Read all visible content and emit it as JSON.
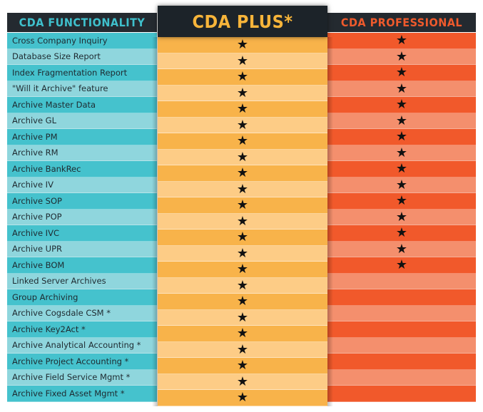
{
  "headers": {
    "functionality": "CDA FUNCTIONALITY",
    "plus": "CDA PLUS*",
    "professional": "CDA PROFESSIONAL"
  },
  "colors": {
    "header_bg": "#242a30",
    "func_dark": "#45c2cd",
    "func_light": "#8fd6dd",
    "plus_dark": "#f8b34a",
    "plus_light": "#fdcc86",
    "pro_dark": "#f1592b",
    "pro_light": "#f48f6d"
  },
  "star_glyph": "★",
  "rows": [
    {
      "name": "Cross Company Inquiry",
      "plus": true,
      "pro": true
    },
    {
      "name": "Database Size Report",
      "plus": true,
      "pro": true
    },
    {
      "name": "Index Fragmentation Report",
      "plus": true,
      "pro": true
    },
    {
      "name": "\"Will it Archive\" feature",
      "plus": true,
      "pro": true
    },
    {
      "name": "Archive Master Data",
      "plus": true,
      "pro": true
    },
    {
      "name": "Archive GL",
      "plus": true,
      "pro": true
    },
    {
      "name": "Archive PM",
      "plus": true,
      "pro": true
    },
    {
      "name": "Archive RM",
      "plus": true,
      "pro": true
    },
    {
      "name": "Archive BankRec",
      "plus": true,
      "pro": true
    },
    {
      "name": "Archive IV",
      "plus": true,
      "pro": true
    },
    {
      "name": "Archive SOP",
      "plus": true,
      "pro": true
    },
    {
      "name": "Archive POP",
      "plus": true,
      "pro": true
    },
    {
      "name": "Archive IVC",
      "plus": true,
      "pro": true
    },
    {
      "name": "Archive UPR",
      "plus": true,
      "pro": true
    },
    {
      "name": "Archive BOM",
      "plus": true,
      "pro": true
    },
    {
      "name": "Linked Server Archives",
      "plus": true,
      "pro": false
    },
    {
      "name": "Group Archiving",
      "plus": true,
      "pro": false
    },
    {
      "name": "Archive Cogsdale CSM *",
      "plus": true,
      "pro": false
    },
    {
      "name": "Archive Key2Act *",
      "plus": true,
      "pro": false
    },
    {
      "name": "Archive Analytical Accounting *",
      "plus": true,
      "pro": false
    },
    {
      "name": "Archive Project Accounting *",
      "plus": true,
      "pro": false
    },
    {
      "name": "Archive Field Service Mgmt *",
      "plus": true,
      "pro": false
    },
    {
      "name": "Archive Fixed Asset Mgmt *",
      "plus": true,
      "pro": false
    }
  ]
}
